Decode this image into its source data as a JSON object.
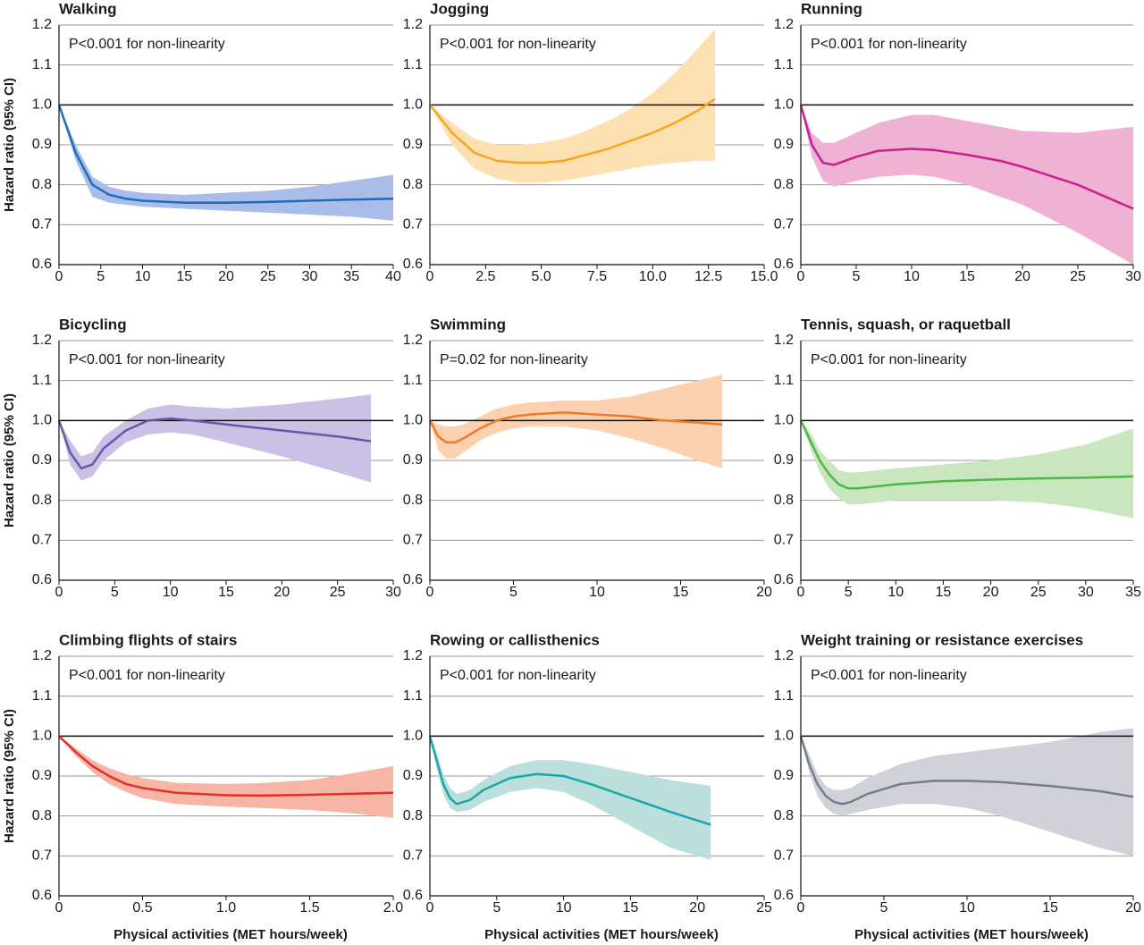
{
  "chart_data": [
    {
      "type": "line",
      "title": "Walking",
      "annotation": "P<0.001 for non-linearity",
      "ylabel": "Hazard ratio (95% CI)",
      "x": [
        0,
        2,
        4,
        6,
        8,
        10,
        15,
        20,
        25,
        30,
        35,
        40
      ],
      "series": [
        {
          "color": "#1f6cbf",
          "band_color": "#aabde9",
          "values": [
            1.0,
            0.88,
            0.8,
            0.775,
            0.765,
            0.76,
            0.755,
            0.755,
            0.757,
            0.76,
            0.763,
            0.765
          ],
          "ci_lower": [
            1.0,
            0.86,
            0.77,
            0.755,
            0.75,
            0.745,
            0.74,
            0.735,
            0.73,
            0.725,
            0.72,
            0.71
          ],
          "ci_upper": [
            1.0,
            0.9,
            0.82,
            0.795,
            0.785,
            0.78,
            0.775,
            0.78,
            0.785,
            0.795,
            0.81,
            0.825
          ]
        }
      ],
      "xlim": [
        0,
        40
      ],
      "xticks": [
        0,
        5,
        10,
        15,
        20,
        25,
        30,
        35,
        40
      ],
      "ylim": [
        0.6,
        1.2
      ],
      "yticks": [
        0.6,
        0.7,
        0.8,
        0.9,
        {
          "value": 1,
          "label": "1.0"
        },
        1.1,
        1.2
      ],
      "grid": true,
      "reference_line": 1
    },
    {
      "type": "line",
      "title": "Jogging",
      "annotation": "P<0.001 for non-linearity",
      "x": [
        0,
        1,
        2,
        3,
        4,
        5,
        6,
        7,
        8,
        9,
        10,
        11,
        12,
        12.8
      ],
      "series": [
        {
          "color": "#f4a81d",
          "band_color": "#fde0b1",
          "values": [
            1.0,
            0.93,
            0.88,
            0.86,
            0.855,
            0.855,
            0.86,
            0.875,
            0.89,
            0.91,
            0.93,
            0.955,
            0.985,
            1.015
          ],
          "ci_lower": [
            1.0,
            0.9,
            0.84,
            0.815,
            0.805,
            0.805,
            0.81,
            0.82,
            0.83,
            0.84,
            0.85,
            0.855,
            0.86,
            0.86
          ],
          "ci_upper": [
            1.0,
            0.955,
            0.915,
            0.9,
            0.9,
            0.905,
            0.915,
            0.935,
            0.96,
            0.99,
            1.03,
            1.08,
            1.14,
            1.19
          ]
        }
      ],
      "xlim": [
        0,
        15
      ],
      "xticks": [
        0,
        2.5,
        {
          "value": 5,
          "label": "5.0"
        },
        7.5,
        {
          "value": 10,
          "label": "10.0"
        },
        12.5,
        {
          "value": 15,
          "label": "15.0"
        }
      ],
      "ylim": [
        0.6,
        1.2
      ],
      "yticks": [
        0.6,
        0.7,
        0.8,
        0.9,
        {
          "value": 1,
          "label": "1.0"
        },
        1.1,
        1.2
      ],
      "grid": true,
      "reference_line": 1
    },
    {
      "type": "line",
      "title": "Running",
      "annotation": "P<0.001 for non-linearity",
      "x": [
        0,
        1,
        2,
        3,
        5,
        7,
        10,
        12,
        15,
        18,
        20,
        25,
        30
      ],
      "series": [
        {
          "color": "#cc1f8a",
          "band_color": "#efb1d4",
          "values": [
            1.0,
            0.9,
            0.855,
            0.85,
            0.87,
            0.885,
            0.89,
            0.887,
            0.875,
            0.86,
            0.845,
            0.8,
            0.74
          ],
          "ci_lower": [
            1.0,
            0.87,
            0.81,
            0.795,
            0.81,
            0.82,
            0.825,
            0.82,
            0.8,
            0.77,
            0.75,
            0.68,
            0.6
          ],
          "ci_upper": [
            1.0,
            0.93,
            0.905,
            0.905,
            0.93,
            0.955,
            0.975,
            0.975,
            0.96,
            0.945,
            0.935,
            0.93,
            0.945
          ]
        }
      ],
      "xlim": [
        0,
        30
      ],
      "xticks": [
        0,
        5,
        10,
        15,
        20,
        25,
        30
      ],
      "ylim": [
        0.6,
        1.2
      ],
      "yticks": [
        0.6,
        0.7,
        0.8,
        0.9,
        {
          "value": 1,
          "label": "1.0"
        },
        1.1,
        1.2
      ],
      "grid": true,
      "reference_line": 1
    },
    {
      "type": "line",
      "title": "Bicycling",
      "annotation": "P<0.001 for non-linearity",
      "ylabel": "Hazard ratio (95% CI)",
      "x": [
        0,
        1,
        2,
        3,
        4,
        6,
        8,
        10,
        12,
        15,
        20,
        25,
        28
      ],
      "series": [
        {
          "color": "#6a55a8",
          "band_color": "#cbc1e5",
          "values": [
            1.0,
            0.92,
            0.88,
            0.89,
            0.93,
            0.975,
            1.0,
            1.005,
            1.0,
            0.99,
            0.975,
            0.96,
            0.948
          ],
          "ci_lower": [
            1.0,
            0.89,
            0.85,
            0.86,
            0.9,
            0.945,
            0.965,
            0.97,
            0.965,
            0.945,
            0.91,
            0.87,
            0.845
          ],
          "ci_upper": [
            1.0,
            0.95,
            0.91,
            0.92,
            0.96,
            1.0,
            1.03,
            1.04,
            1.035,
            1.03,
            1.04,
            1.055,
            1.065
          ]
        }
      ],
      "xlim": [
        0,
        30
      ],
      "xticks": [
        0,
        5,
        10,
        15,
        20,
        25,
        30
      ],
      "ylim": [
        0.6,
        1.2
      ],
      "yticks": [
        0.6,
        0.7,
        0.8,
        0.9,
        {
          "value": 1,
          "label": "1.0"
        },
        1.1,
        1.2
      ],
      "grid": true,
      "reference_line": 1
    },
    {
      "type": "line",
      "title": "Swimming",
      "annotation": "P=0.02 for non-linearity",
      "x": [
        0,
        0.5,
        1,
        1.5,
        2,
        3,
        4,
        5,
        6,
        8,
        10,
        12,
        14,
        16,
        17.5
      ],
      "series": [
        {
          "color": "#ee7a2a",
          "band_color": "#fbd1af",
          "values": [
            1.0,
            0.96,
            0.945,
            0.945,
            0.955,
            0.98,
            1.0,
            1.01,
            1.015,
            1.02,
            1.015,
            1.01,
            1.0,
            0.995,
            0.99
          ],
          "ci_lower": [
            1.0,
            0.925,
            0.905,
            0.905,
            0.92,
            0.95,
            0.97,
            0.98,
            0.985,
            0.985,
            0.975,
            0.955,
            0.93,
            0.9,
            0.88
          ],
          "ci_upper": [
            1.0,
            0.99,
            0.985,
            0.985,
            0.99,
            1.01,
            1.03,
            1.04,
            1.045,
            1.05,
            1.05,
            1.06,
            1.08,
            1.1,
            1.115
          ]
        }
      ],
      "xlim": [
        0,
        20
      ],
      "xticks": [
        0,
        5,
        10,
        15,
        20
      ],
      "ylim": [
        0.6,
        1.2
      ],
      "yticks": [
        0.6,
        0.7,
        0.8,
        0.9,
        {
          "value": 1,
          "label": "1.0"
        },
        1.1,
        1.2
      ],
      "grid": true,
      "reference_line": 1
    },
    {
      "type": "line",
      "title": "Tennis, squash, or raquetball",
      "annotation": "P<0.001 for non-linearity",
      "x": [
        0,
        1,
        2,
        3,
        4,
        5,
        6,
        8,
        10,
        15,
        20,
        25,
        30,
        35
      ],
      "series": [
        {
          "color": "#4cb848",
          "band_color": "#c9e6be",
          "values": [
            1.0,
            0.95,
            0.9,
            0.865,
            0.84,
            0.83,
            0.83,
            0.835,
            0.84,
            0.848,
            0.852,
            0.855,
            0.857,
            0.86
          ],
          "ci_lower": [
            1.0,
            0.93,
            0.87,
            0.83,
            0.805,
            0.79,
            0.79,
            0.795,
            0.8,
            0.8,
            0.8,
            0.795,
            0.78,
            0.755
          ],
          "ci_upper": [
            1.0,
            0.97,
            0.925,
            0.9,
            0.875,
            0.87,
            0.87,
            0.875,
            0.88,
            0.89,
            0.9,
            0.915,
            0.94,
            0.98
          ]
        }
      ],
      "xlim": [
        0,
        35
      ],
      "xticks": [
        0,
        5,
        10,
        15,
        20,
        25,
        30,
        35
      ],
      "ylim": [
        0.6,
        1.2
      ],
      "yticks": [
        0.6,
        0.7,
        0.8,
        0.9,
        {
          "value": 1,
          "label": "1.0"
        },
        1.1,
        1.2
      ],
      "grid": true,
      "reference_line": 1
    },
    {
      "type": "line",
      "title": "Climbing flights of stairs",
      "annotation": "P<0.001 for non-linearity",
      "ylabel": "Hazard ratio (95% CI)",
      "xlabel": "Physical activities (MET hours/week)",
      "x": [
        0,
        0.1,
        0.2,
        0.3,
        0.4,
        0.5,
        0.7,
        1.0,
        1.2,
        1.5,
        1.8,
        2.0
      ],
      "series": [
        {
          "color": "#e0302a",
          "band_color": "#f6b5a5",
          "values": [
            1.0,
            0.96,
            0.925,
            0.9,
            0.88,
            0.87,
            0.858,
            0.852,
            0.851,
            0.853,
            0.856,
            0.858
          ],
          "ci_lower": [
            1.0,
            0.95,
            0.91,
            0.88,
            0.86,
            0.845,
            0.83,
            0.823,
            0.82,
            0.815,
            0.805,
            0.795
          ],
          "ci_upper": [
            1.0,
            0.97,
            0.94,
            0.92,
            0.905,
            0.895,
            0.883,
            0.88,
            0.882,
            0.89,
            0.91,
            0.925
          ]
        }
      ],
      "xlim": [
        0,
        2
      ],
      "xticks": [
        0,
        0.5,
        {
          "value": 1,
          "label": "1.0"
        },
        1.5,
        {
          "value": 2,
          "label": "2.0"
        }
      ],
      "ylim": [
        0.6,
        1.2
      ],
      "yticks": [
        0.6,
        0.7,
        0.8,
        0.9,
        {
          "value": 1,
          "label": "1.0"
        },
        1.1,
        1.2
      ],
      "grid": true,
      "reference_line": 1
    },
    {
      "type": "line",
      "title": "Rowing or callisthenics",
      "annotation": "P<0.001 for non-linearity",
      "xlabel": "Physical activities (MET hours/week)",
      "x": [
        0,
        0.5,
        1,
        1.5,
        2,
        3,
        4,
        6,
        8,
        10,
        12,
        15,
        18,
        21
      ],
      "series": [
        {
          "color": "#1aa7a7",
          "band_color": "#badfdc",
          "values": [
            1.0,
            0.94,
            0.88,
            0.845,
            0.83,
            0.84,
            0.865,
            0.895,
            0.905,
            0.9,
            0.88,
            0.845,
            0.81,
            0.778
          ],
          "ci_lower": [
            1.0,
            0.92,
            0.855,
            0.82,
            0.81,
            0.815,
            0.835,
            0.86,
            0.87,
            0.86,
            0.83,
            0.775,
            0.72,
            0.69
          ],
          "ci_upper": [
            1.0,
            0.96,
            0.905,
            0.87,
            0.855,
            0.865,
            0.89,
            0.925,
            0.94,
            0.94,
            0.93,
            0.91,
            0.89,
            0.875
          ]
        }
      ],
      "xlim": [
        0,
        25
      ],
      "xticks": [
        0,
        5,
        10,
        15,
        20,
        25
      ],
      "ylim": [
        0.6,
        1.2
      ],
      "yticks": [
        0.6,
        0.7,
        0.8,
        0.9,
        {
          "value": 1,
          "label": "1.0"
        },
        1.1,
        1.2
      ],
      "grid": true,
      "reference_line": 1
    },
    {
      "type": "line",
      "title": "Weight training or resistance exercises",
      "annotation": "P<0.001 for non-linearity",
      "xlabel": "Physical activities (MET hours/week)",
      "x": [
        0,
        0.5,
        1,
        1.5,
        2,
        2.5,
        3,
        4,
        6,
        8,
        10,
        12,
        15,
        18,
        20
      ],
      "series": [
        {
          "color": "#737d8c",
          "band_color": "#d0d1d9",
          "values": [
            1.0,
            0.93,
            0.88,
            0.85,
            0.835,
            0.83,
            0.835,
            0.855,
            0.88,
            0.888,
            0.888,
            0.885,
            0.875,
            0.862,
            0.848
          ],
          "ci_lower": [
            1.0,
            0.91,
            0.85,
            0.82,
            0.805,
            0.8,
            0.805,
            0.815,
            0.83,
            0.83,
            0.82,
            0.8,
            0.76,
            0.72,
            0.7
          ],
          "ci_upper": [
            1.0,
            0.955,
            0.905,
            0.875,
            0.865,
            0.865,
            0.87,
            0.895,
            0.93,
            0.95,
            0.96,
            0.97,
            0.985,
            1.01,
            1.02
          ]
        }
      ],
      "xlim": [
        0,
        20
      ],
      "xticks": [
        0,
        5,
        10,
        15,
        20
      ],
      "ylim": [
        0.6,
        1.2
      ],
      "yticks": [
        0.6,
        0.7,
        0.8,
        0.9,
        {
          "value": 1,
          "label": "1.0"
        },
        1.1,
        1.2
      ],
      "grid": true,
      "reference_line": 1
    }
  ]
}
